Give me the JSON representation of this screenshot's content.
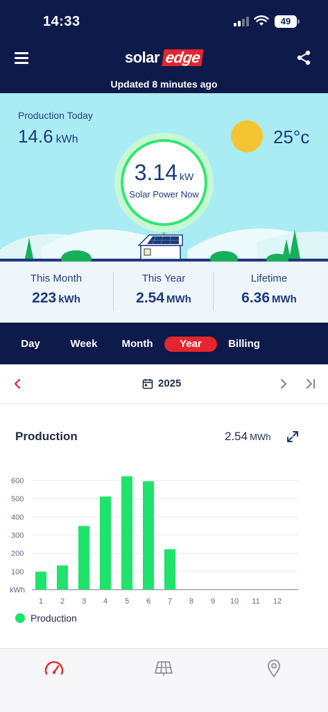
{
  "status_bar": {
    "time": "14:33",
    "battery": "49"
  },
  "header": {
    "logo_solar": "solar",
    "logo_edge": "edge",
    "updated": "Updated 8 minutes ago"
  },
  "hero": {
    "production_today_label": "Production Today",
    "production_today_value": "14.6",
    "production_today_unit": "kWh",
    "temperature": "25°c",
    "power_value": "3.14",
    "power_unit": "kW",
    "power_label": "Solar Power Now"
  },
  "stats": [
    {
      "label": "This Month",
      "value": "223",
      "unit": "kWh"
    },
    {
      "label": "This Year",
      "value": "2.54",
      "unit": "MWh"
    },
    {
      "label": "Lifetime",
      "value": "6.36",
      "unit": "MWh"
    }
  ],
  "tabs": [
    {
      "label": "Day",
      "active": false
    },
    {
      "label": "Week",
      "active": false
    },
    {
      "label": "Month",
      "active": false
    },
    {
      "label": "Year",
      "active": true
    },
    {
      "label": "Billing",
      "active": false
    }
  ],
  "date_nav": {
    "year": "2025"
  },
  "chart_card": {
    "title": "Production",
    "total_value": "2.54",
    "total_unit": "MWh",
    "legend": "Production"
  },
  "colors": {
    "navy": "#0d1a4a",
    "accent_red": "#e3262d",
    "bar_green": "#1fe36a",
    "sky": "#a9ecf4"
  },
  "icons": [
    "menu-icon",
    "share-icon",
    "sun-icon",
    "house-icon",
    "chevron-left-icon",
    "calendar-icon",
    "chevron-right-icon",
    "skip-end-icon",
    "expand-icon",
    "dashboard-gauge-icon",
    "solar-panel-icon",
    "location-pin-icon"
  ],
  "chart_data": {
    "type": "bar",
    "categories": [
      "1",
      "2",
      "3",
      "4",
      "5",
      "6",
      "7",
      "8",
      "9",
      "10",
      "11",
      "12"
    ],
    "values": [
      98,
      133,
      350,
      512,
      623,
      596,
      222,
      0,
      0,
      0,
      0,
      0
    ],
    "ylabel": "kWh",
    "ylim": [
      0,
      650
    ],
    "yticks": [
      100,
      200,
      300,
      400,
      500,
      600
    ],
    "grid": true,
    "legend_position": "bottom-left",
    "series": [
      {
        "name": "Production",
        "values": [
          98,
          133,
          350,
          512,
          623,
          596,
          222,
          0,
          0,
          0,
          0,
          0
        ]
      }
    ]
  }
}
